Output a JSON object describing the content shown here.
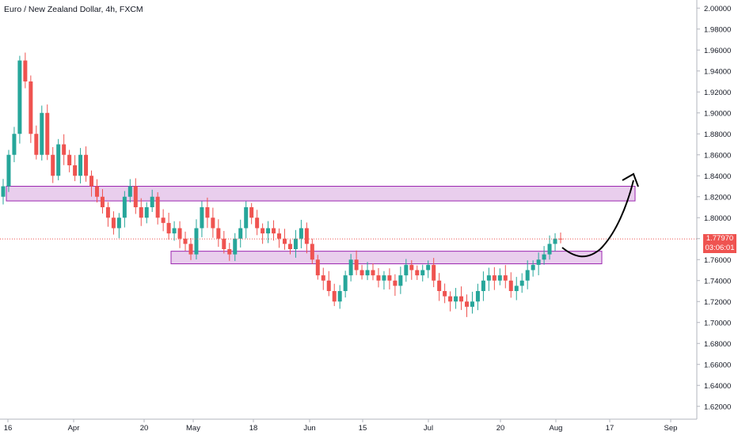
{
  "title": "Euro / New Zealand Dollar, 4h, FXCM",
  "colors": {
    "up": "#26a69a",
    "down": "#ef5350",
    "zone_fill": "#e1bee7",
    "zone_stroke": "#9c27b0",
    "arrow": "#000000",
    "price_line": "#ef5350"
  },
  "price_badges": {
    "last_price": "1.77970",
    "countdown": "03:06:01"
  },
  "chart_data": {
    "type": "candlestick",
    "ylim": [
      1.61,
      2.01
    ],
    "y_ticks": [
      "2.00000",
      "1.98000",
      "1.96000",
      "1.94000",
      "1.92000",
      "1.90000",
      "1.88000",
      "1.86000",
      "1.84000",
      "1.82000",
      "1.80000",
      "1.78000",
      "1.76000",
      "1.74000",
      "1.72000",
      "1.70000",
      "1.68000",
      "1.66000",
      "1.64000",
      "1.62000"
    ],
    "x_ticks": [
      "16",
      "Apr",
      "20",
      "May",
      "18",
      "Jun",
      "15",
      "Jul",
      "20",
      "Aug",
      "17",
      "Sep"
    ],
    "series": [
      {
        "values": [
          [
            1.82,
            1.83
          ],
          [
            1.83,
            1.86
          ],
          [
            1.86,
            1.88
          ],
          [
            1.88,
            1.95
          ],
          [
            1.95,
            1.93
          ],
          [
            1.93,
            1.88
          ],
          [
            1.88,
            1.86
          ],
          [
            1.86,
            1.9
          ],
          [
            1.9,
            1.86
          ],
          [
            1.86,
            1.84
          ],
          [
            1.84,
            1.87
          ],
          [
            1.87,
            1.86
          ],
          [
            1.86,
            1.85
          ],
          [
            1.85,
            1.84
          ],
          [
            1.84,
            1.86
          ],
          [
            1.86,
            1.84
          ],
          [
            1.84,
            1.83
          ],
          [
            1.83,
            1.82
          ],
          [
            1.82,
            1.81
          ],
          [
            1.81,
            1.8
          ],
          [
            1.8,
            1.79
          ],
          [
            1.79,
            1.8
          ],
          [
            1.8,
            1.82
          ],
          [
            1.82,
            1.83
          ],
          [
            1.83,
            1.81
          ],
          [
            1.81,
            1.8
          ],
          [
            1.8,
            1.81
          ],
          [
            1.81,
            1.82
          ],
          [
            1.82,
            1.8
          ],
          [
            1.8,
            1.795
          ],
          [
            1.795,
            1.785
          ],
          [
            1.785,
            1.79
          ],
          [
            1.79,
            1.78
          ],
          [
            1.78,
            1.775
          ],
          [
            1.775,
            1.765
          ],
          [
            1.765,
            1.79
          ],
          [
            1.79,
            1.81
          ],
          [
            1.81,
            1.8
          ],
          [
            1.8,
            1.79
          ],
          [
            1.79,
            1.78
          ],
          [
            1.78,
            1.77
          ],
          [
            1.77,
            1.765
          ],
          [
            1.765,
            1.78
          ],
          [
            1.78,
            1.79
          ],
          [
            1.79,
            1.81
          ],
          [
            1.81,
            1.8
          ],
          [
            1.8,
            1.79
          ],
          [
            1.79,
            1.785
          ],
          [
            1.785,
            1.79
          ],
          [
            1.79,
            1.785
          ],
          [
            1.785,
            1.78
          ],
          [
            1.78,
            1.775
          ],
          [
            1.775,
            1.77
          ],
          [
            1.77,
            1.78
          ],
          [
            1.78,
            1.79
          ],
          [
            1.79,
            1.775
          ],
          [
            1.775,
            1.76
          ],
          [
            1.76,
            1.745
          ],
          [
            1.745,
            1.74
          ],
          [
            1.74,
            1.73
          ],
          [
            1.73,
            1.72
          ],
          [
            1.72,
            1.73
          ],
          [
            1.73,
            1.745
          ],
          [
            1.745,
            1.76
          ],
          [
            1.76,
            1.75
          ],
          [
            1.75,
            1.745
          ],
          [
            1.745,
            1.75
          ],
          [
            1.75,
            1.745
          ],
          [
            1.745,
            1.74
          ],
          [
            1.74,
            1.745
          ],
          [
            1.745,
            1.74
          ],
          [
            1.74,
            1.735
          ],
          [
            1.735,
            1.745
          ],
          [
            1.745,
            1.755
          ],
          [
            1.755,
            1.75
          ],
          [
            1.75,
            1.745
          ],
          [
            1.745,
            1.75
          ],
          [
            1.75,
            1.755
          ],
          [
            1.755,
            1.74
          ],
          [
            1.74,
            1.73
          ],
          [
            1.73,
            1.725
          ],
          [
            1.725,
            1.72
          ],
          [
            1.72,
            1.725
          ],
          [
            1.725,
            1.72
          ],
          [
            1.72,
            1.715
          ],
          [
            1.715,
            1.72
          ],
          [
            1.72,
            1.73
          ],
          [
            1.73,
            1.74
          ],
          [
            1.74,
            1.745
          ],
          [
            1.745,
            1.74
          ],
          [
            1.74,
            1.745
          ],
          [
            1.745,
            1.74
          ],
          [
            1.74,
            1.73
          ],
          [
            1.73,
            1.735
          ],
          [
            1.735,
            1.74
          ],
          [
            1.74,
            1.75
          ],
          [
            1.75,
            1.755
          ],
          [
            1.755,
            1.76
          ],
          [
            1.76,
            1.765
          ],
          [
            1.765,
            1.775
          ],
          [
            1.775,
            1.78
          ],
          [
            1.78,
            1.7797
          ]
        ]
      }
    ],
    "zones": [
      {
        "y_low": 1.816,
        "y_high": 1.83,
        "x_start": 0.0,
        "x_end": 1.0
      },
      {
        "y_low": 1.756,
        "y_high": 1.768,
        "x_start": 0.23,
        "x_end": 1.0
      }
    ],
    "last_price": 1.7797,
    "projection": "arrow from last price dipping then rising toward 1.85"
  }
}
